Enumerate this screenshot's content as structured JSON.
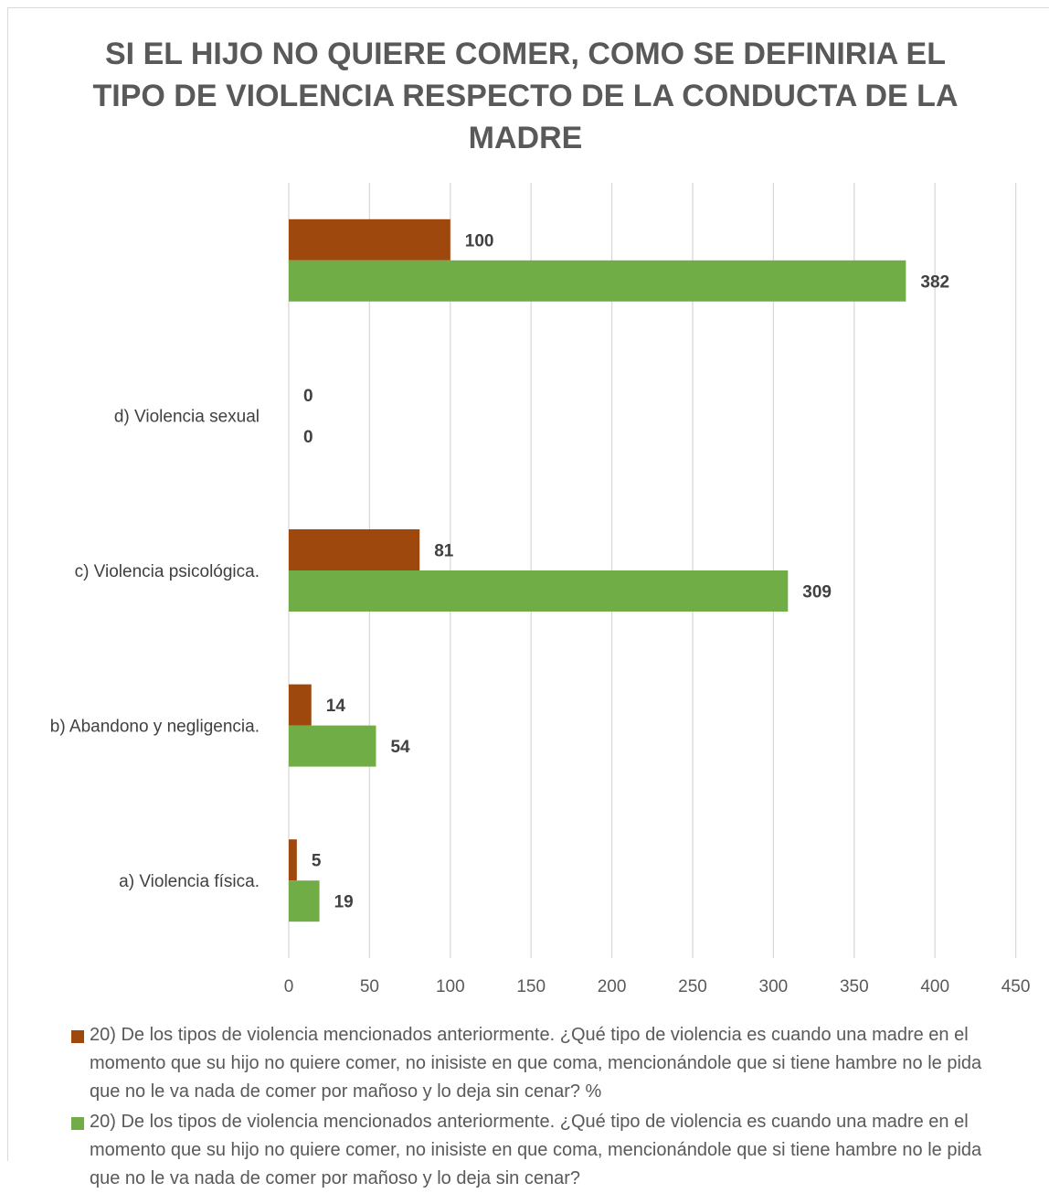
{
  "chart_data": {
    "type": "bar",
    "orientation": "horizontal",
    "title": "SI EL HIJO NO QUIERE COMER, COMO SE DEFINIRIA EL TIPO DE VIOLENCIA RESPECTO DE LA CONDUCTA DE LA MADRE",
    "categories": [
      "a) Violencia física.",
      "b) Abandono y negligencia.",
      "c) Violencia psicológica.",
      "d) Violencia sexual",
      ""
    ],
    "series": [
      {
        "name": "20) De los tipos de violencia mencionados anteriormente. ¿Qué tipo de violencia es cuando una madre en el momento que su hijo no quiere comer, no inisiste en que coma, mencionándole que si tiene hambre no le pida que no le va nada de comer por mañoso y lo deja sin cenar? %",
        "color": "#9e480e",
        "values": [
          5,
          14,
          81,
          0,
          100
        ]
      },
      {
        "name": "20) De los tipos de violencia mencionados anteriormente. ¿Qué tipo de violencia es cuando una madre en el momento que su hijo no quiere comer, no inisiste en que coma, mencionándole que si tiene hambre no le pida que no le va nada de comer por mañoso y lo deja sin cenar?",
        "color": "#70ad47",
        "values": [
          19,
          54,
          309,
          0,
          382
        ]
      }
    ],
    "xlim": [
      0,
      450
    ],
    "xticks": [
      0,
      50,
      100,
      150,
      200,
      250,
      300,
      350,
      400,
      450
    ],
    "xlabel": "",
    "ylabel": "",
    "grid": "vertical",
    "legend": "bottom",
    "data_labels": true
  }
}
